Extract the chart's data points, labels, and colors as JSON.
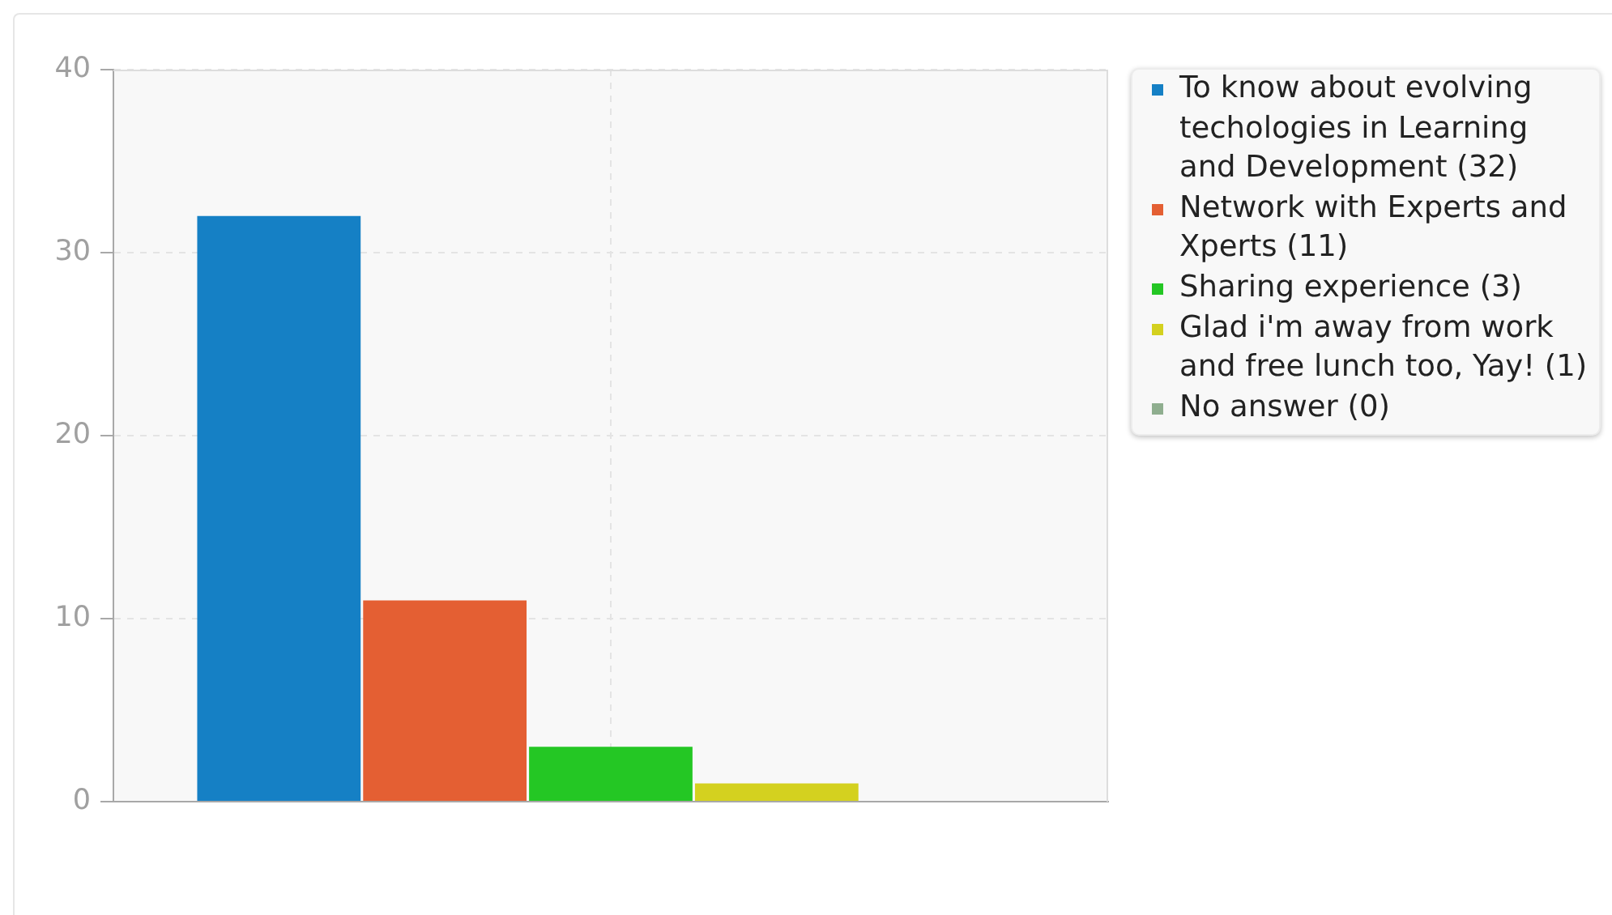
{
  "chart_data": {
    "type": "bar",
    "categories": [
      null
    ],
    "series": [
      {
        "name": "To know about evolving techologies in Learning and Development (32)",
        "color": "#1580c5",
        "values": [
          32
        ]
      },
      {
        "name": "Network with Experts and Xperts (11)",
        "color": "#e45f33",
        "values": [
          11
        ]
      },
      {
        "name": "Sharing experience (3)",
        "color": "#24c724",
        "values": [
          3
        ]
      },
      {
        "name": "Glad i'm away from work and free lunch too, Yay! (1)",
        "color": "#d4d11f",
        "values": [
          1
        ]
      },
      {
        "name": "No answer (0)",
        "color": "#8fae8f",
        "values": [
          0
        ]
      }
    ],
    "ylim": [
      0,
      40
    ],
    "yticks": [
      0,
      10,
      20,
      30,
      40
    ],
    "grid": true,
    "legend": "top right",
    "tick_labels": "y"
  }
}
